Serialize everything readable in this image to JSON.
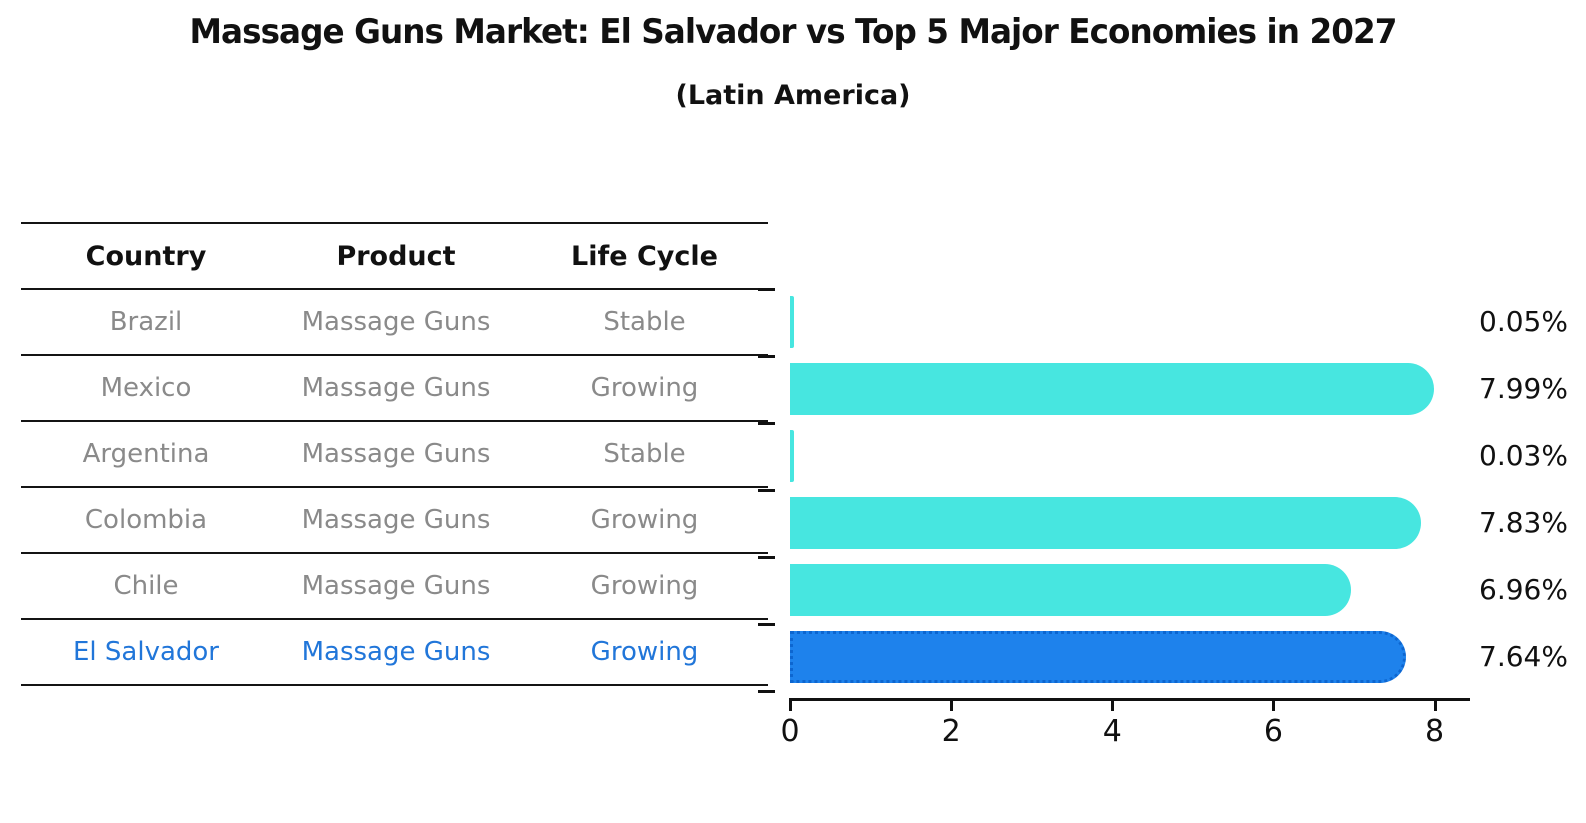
{
  "header": {
    "title": "Massage Guns Market: El Salvador vs Top 5 Major Economies in 2027",
    "subtitle": "(Latin America)"
  },
  "table": {
    "headers": {
      "country": "Country",
      "product": "Product",
      "life_cycle": "Life Cycle"
    },
    "rows": [
      {
        "country": "Brazil",
        "product": "Massage Guns",
        "life_cycle": "Stable",
        "highlight": false
      },
      {
        "country": "Mexico",
        "product": "Massage Guns",
        "life_cycle": "Growing",
        "highlight": false
      },
      {
        "country": "Argentina",
        "product": "Massage Guns",
        "life_cycle": "Stable",
        "highlight": false
      },
      {
        "country": "Colombia",
        "product": "Massage Guns",
        "life_cycle": "Growing",
        "highlight": false
      },
      {
        "country": "Chile",
        "product": "Massage Guns",
        "life_cycle": "Growing",
        "highlight": false
      },
      {
        "country": "El Salvador",
        "product": "Massage Guns",
        "life_cycle": "Growing",
        "highlight": true
      }
    ]
  },
  "chart_data": {
    "type": "bar",
    "orientation": "horizontal",
    "title": "Massage Guns Market: El Salvador vs Top 5 Major Economies in 2027 (Latin America)",
    "categories": [
      "Brazil",
      "Mexico",
      "Argentina",
      "Colombia",
      "Chile",
      "El Salvador"
    ],
    "values": [
      0.05,
      7.99,
      0.03,
      7.83,
      6.96,
      7.64
    ],
    "value_labels": [
      "0.05%",
      "7.99%",
      "0.03%",
      "7.83%",
      "6.96%",
      "7.64%"
    ],
    "x_ticks": [
      "0",
      "2",
      "4",
      "6",
      "8"
    ],
    "x_tick_values": [
      0,
      2,
      4,
      6,
      8
    ],
    "xlim": [
      0,
      8.44
    ],
    "grid": false,
    "legend": false,
    "colors": {
      "bar": "#47E6E0",
      "highlight_bar": "#1E82EC",
      "highlight_border": "#0d66d0",
      "axis": "#111111",
      "row_text": "#8a8a8a",
      "highlight_text": "#2176d9"
    },
    "highlight_index": 5
  }
}
